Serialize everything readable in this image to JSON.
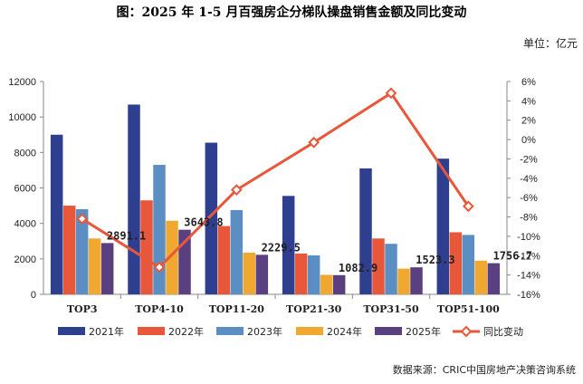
{
  "chart_data": {
    "type": "bar+line",
    "title": "图：2025 年 1-5 月百强房企分梯队操盘销售金额及同比变动",
    "unit": "单位：亿元",
    "categories": [
      "TOP3",
      "TOP4-10",
      "TOP11-20",
      "TOP21-30",
      "TOP31-50",
      "TOP51-100"
    ],
    "series": [
      {
        "name": "2021年",
        "color": "#2E3F8F",
        "values": [
          9000,
          10700,
          8550,
          5550,
          7100,
          7650
        ]
      },
      {
        "name": "2022年",
        "color": "#E8573A",
        "values": [
          5000,
          5300,
          3850,
          2300,
          3150,
          3500
        ]
      },
      {
        "name": "2023年",
        "color": "#5B8FC4",
        "values": [
          4800,
          7300,
          4750,
          2200,
          2850,
          3350
        ]
      },
      {
        "name": "2024年",
        "color": "#F0A830",
        "values": [
          3150,
          4150,
          2350,
          1100,
          1450,
          1900
        ]
      },
      {
        "name": "2025年",
        "color": "#5A4080",
        "values": [
          2891.1,
          3643.8,
          2229.5,
          1082.9,
          1523.3,
          1756.7
        ]
      }
    ],
    "data_labels": [
      "2891.1",
      "3643.8",
      "2229.5",
      "1082.9",
      "1523.3",
      "1756.7"
    ],
    "line": {
      "name": "同比变动",
      "color": "#E8573A",
      "values": [
        -8.2,
        -13.2,
        -5.2,
        -0.3,
        4.8,
        -6.9
      ]
    },
    "y_left": {
      "min": 0,
      "max": 12000,
      "step": 2000,
      "ticks": [
        "0",
        "2000",
        "4000",
        "6000",
        "8000",
        "10000",
        "12000"
      ]
    },
    "y_right": {
      "min": -16,
      "max": 6,
      "step": 2,
      "ticks": [
        "-16%",
        "-14%",
        "-12%",
        "-10%",
        "-8%",
        "-6%",
        "-4%",
        "-2%",
        "0%",
        "2%",
        "4%",
        "6%"
      ]
    },
    "legend_position": "bottom",
    "source": "数据来源：CRIC中国房地产决策咨询系统"
  }
}
